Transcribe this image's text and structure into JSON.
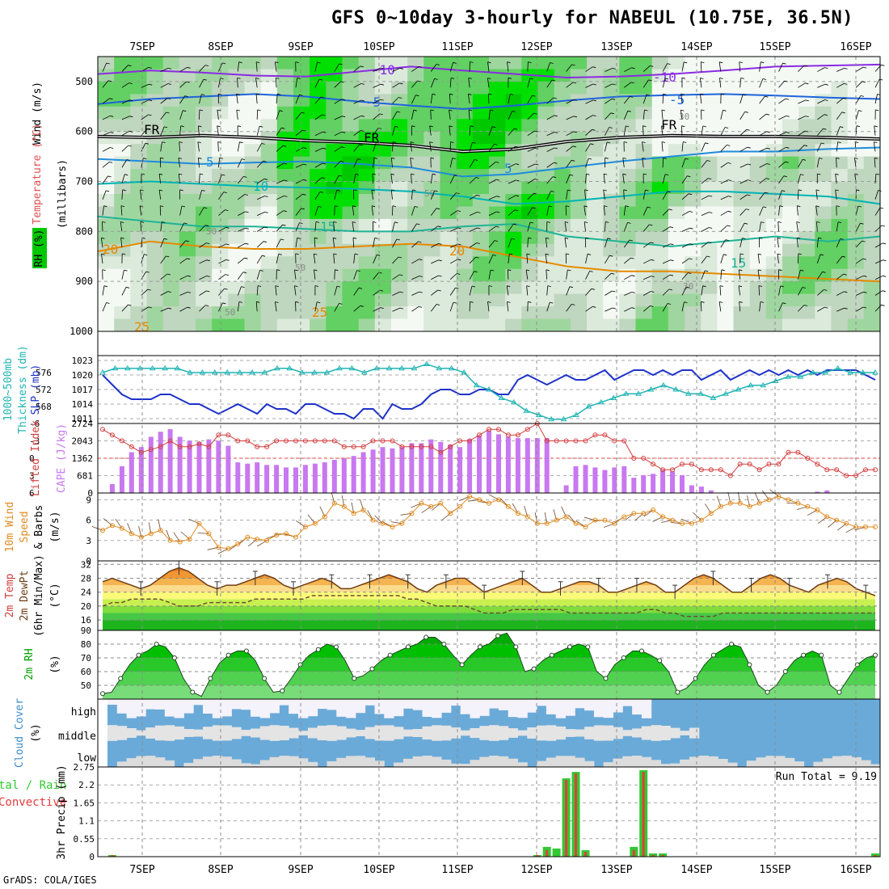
{
  "title": "GFS 0~10day 3-hourly for NABEUL (10.75E, 36.5N)",
  "credit": "GrADS: COLA/IGES",
  "date_labels": [
    "7SEP",
    "8SEP",
    "9SEP",
    "10SEP",
    "11SEP",
    "12SEP",
    "13SEP",
    "14SEP",
    "15SEP",
    "16SEP"
  ],
  "colors": {
    "rh_green": "#00d400",
    "temp_purple": "#8a2be2",
    "temp_blue": "#1e64dc",
    "temp_teal": "#00b4b4",
    "temp_orange": "#e68a00",
    "slp_blue": "#1e32c8",
    "thickness_cyan": "#20b4b4",
    "cape_purple": "#c878f0",
    "li_red": "#d23c3c",
    "wind_orange": "#e08a1e",
    "precip_green": "#32c832",
    "precip_red": "#e63c3c",
    "cloud_blue": "#6aaad8"
  },
  "chart_data": [
    {
      "type": "heatmap",
      "panel": "upper_air",
      "ylabel": "(millibars)",
      "side_labels": {
        "rh": "RH (%)",
        "temperature": "Temperature (°C)",
        "wind": "Wind (m/s)"
      },
      "yticks": [
        500,
        600,
        700,
        800,
        900,
        1000
      ],
      "ylim": [
        1000,
        450
      ],
      "contour_labels": [
        "-10",
        "-10",
        "-5",
        "-5",
        "FR",
        "FR",
        "FR",
        "5",
        "5",
        "10",
        "15",
        "15",
        "20",
        "20",
        "25",
        "25",
        "50",
        "50",
        "50",
        "50",
        "30",
        "30"
      ],
      "temp_contours": [
        {
          "label": "-10",
          "color": "#8a2be2",
          "p": [
            485,
            478,
            482,
            488,
            490,
            480,
            470,
            478,
            485,
            492,
            490,
            485,
            478,
            470,
            468,
            466
          ]
        },
        {
          "label": "-5",
          "color": "#1e64dc",
          "p": [
            545,
            535,
            530,
            525,
            530,
            540,
            548,
            555,
            548,
            538,
            530,
            527,
            525,
            528,
            532,
            535
          ]
        },
        {
          "label": "FR",
          "color": "#000000",
          "p": [
            610,
            612,
            608,
            612,
            618,
            622,
            628,
            640,
            635,
            620,
            612,
            608,
            610,
            610,
            612,
            615
          ]
        },
        {
          "label": "5",
          "color": "#1e8cdc",
          "p": [
            655,
            660,
            665,
            662,
            660,
            665,
            672,
            690,
            685,
            672,
            660,
            650,
            640,
            640,
            635,
            632
          ]
        },
        {
          "label": "10",
          "color": "#00b4b4",
          "p": [
            705,
            700,
            705,
            710,
            712,
            715,
            720,
            730,
            745,
            740,
            730,
            720,
            720,
            725,
            730,
            745
          ]
        },
        {
          "label": "15",
          "color": "#1eb496",
          "p": [
            770,
            780,
            790,
            790,
            795,
            800,
            800,
            790,
            785,
            810,
            820,
            830,
            820,
            810,
            820,
            810
          ]
        },
        {
          "label": "20",
          "color": "#e68a00",
          "p": [
            840,
            820,
            830,
            835,
            835,
            830,
            825,
            830,
            850,
            870,
            880,
            880,
            885,
            890,
            895,
            900
          ]
        }
      ]
    },
    {
      "type": "line",
      "panel": "thickness_slp",
      "labels": {
        "thickness": "1000~500mb Thickness (dm)",
        "slp": "SLP (mb)"
      },
      "left_ticks": [
        568,
        572,
        576
      ],
      "right_ticks": [
        1011,
        1014,
        1017,
        1020,
        1023
      ],
      "series": [
        {
          "name": "SLP (mb)",
          "color": "#1e32c8",
          "values": [
            1020,
            1018,
            1016,
            1015,
            1015,
            1015,
            1016,
            1016,
            1015,
            1014,
            1014,
            1013,
            1012,
            1013,
            1014,
            1013,
            1012,
            1014,
            1013,
            1013,
            1012,
            1014,
            1014,
            1013,
            1012,
            1012,
            1011,
            1013,
            1013,
            1011,
            1014,
            1013,
            1013,
            1014,
            1016,
            1017,
            1017,
            1016,
            1016,
            1017,
            1017,
            1016,
            1016,
            1019,
            1020,
            1019,
            1018,
            1019,
            1020,
            1019,
            1019,
            1020,
            1021,
            1019,
            1020,
            1021,
            1021,
            1020,
            1021,
            1020,
            1021,
            1021,
            1019,
            1020,
            1021,
            1019,
            1020,
            1021,
            1020,
            1021,
            1020,
            1021,
            1020,
            1021,
            1020,
            1021,
            1021,
            1021,
            1021,
            1020,
            1019
          ]
        },
        {
          "name": "Thickness (dm)",
          "color": "#20b4b4",
          "values": [
            576,
            577,
            577,
            577,
            577,
            577,
            577,
            576,
            576,
            576,
            576,
            576,
            576,
            576,
            577,
            577,
            576,
            576,
            576,
            577,
            577,
            576,
            577,
            577,
            577,
            577,
            578,
            577,
            577,
            576,
            573,
            572,
            570,
            569,
            567,
            566,
            565,
            565,
            566,
            568,
            569,
            570,
            571,
            571,
            572,
            573,
            572,
            571,
            571,
            570,
            571,
            572,
            573,
            573,
            574,
            575,
            575,
            576,
            576,
            577,
            576,
            576,
            576
          ]
        }
      ]
    },
    {
      "type": "bar",
      "panel": "cape_li",
      "labels": {
        "li": "Lifted Index",
        "cape": "CAPE (J/kg)"
      },
      "left_ticks": [
        -6,
        -3,
        0,
        3,
        6
      ],
      "right_ticks": [
        0,
        681,
        1362,
        2043,
        2724
      ],
      "series": [
        {
          "name": "CAPE (J/kg)",
          "color": "#c878f0",
          "values": [
            0,
            350,
            1050,
            1600,
            1800,
            2200,
            2400,
            2500,
            2200,
            2050,
            2000,
            2100,
            2050,
            1850,
            1200,
            1150,
            1200,
            1100,
            1100,
            1000,
            1000,
            1100,
            1150,
            1200,
            1300,
            1350,
            1450,
            1600,
            1700,
            1800,
            1750,
            1800,
            1950,
            1950,
            2100,
            2000,
            1900,
            1800,
            2100,
            2250,
            2450,
            2300,
            2200,
            2150,
            2150,
            2150,
            2150,
            0,
            300,
            1050,
            1100,
            1000,
            900,
            1000,
            1050,
            600,
            700,
            750,
            900,
            850,
            700,
            300,
            250,
            100,
            0,
            0,
            0,
            0,
            0,
            0,
            0,
            0,
            0,
            0,
            50,
            100,
            0,
            0,
            0,
            0,
            0
          ]
        },
        {
          "name": "Lifted Index",
          "color": "#d23c3c",
          "values": [
            -5,
            -4,
            -3,
            -2,
            -1,
            -1.5,
            -2,
            -3,
            -2,
            -2,
            -2.5,
            -2,
            -4,
            -4,
            -3,
            -3,
            -2,
            -2,
            -3,
            -3,
            -3,
            -3,
            -3,
            -3,
            -3,
            -2,
            -2,
            -2,
            -3,
            -3,
            -3,
            -2,
            -2,
            -2,
            -2,
            -1,
            -2,
            -3,
            -3,
            -4,
            -5,
            -5,
            -4,
            -4,
            -5,
            -6,
            -3,
            -3,
            -3,
            -3,
            -3,
            -4,
            -4,
            -3,
            -3,
            0,
            0,
            1,
            2,
            2,
            1,
            1,
            2,
            2,
            2,
            3,
            1,
            1,
            2,
            1,
            1,
            -1,
            -1,
            0,
            1,
            2,
            2,
            3,
            3,
            2,
            2
          ]
        }
      ]
    },
    {
      "type": "line",
      "panel": "wind10m",
      "labels": {
        "wind": "10m Wind Speed & Barbs (m/s)"
      },
      "left_ticks": [
        0,
        3,
        6,
        9
      ],
      "series": [
        {
          "name": "10m Wind Speed",
          "color": "#e08a1e",
          "values": [
            4.5,
            5.2,
            4.8,
            4.0,
            3.5,
            4.0,
            4.5,
            3.0,
            2.8,
            3.2,
            5.5,
            4.0,
            2.0,
            1.8,
            2.5,
            3.5,
            3.2,
            3.0,
            3.8,
            4.0,
            3.5,
            5.0,
            5.5,
            6.5,
            8.5,
            8.0,
            7.0,
            7.5,
            6.0,
            5.5,
            5.0,
            5.5,
            7.0,
            8.5,
            8.0,
            8.5,
            7.0,
            8.0,
            9.5,
            9.0,
            8.5,
            9.0,
            8.0,
            7.0,
            6.5,
            5.5,
            5.5,
            6.0,
            6.5,
            5.5,
            5.0,
            6.0,
            6.0,
            5.5,
            6.5,
            7.0,
            7.0,
            7.5,
            6.5,
            6.0,
            5.5,
            5.5,
            6.0,
            7.0,
            8.0,
            8.5,
            8.5,
            8.0,
            8.5,
            9.0,
            9.5,
            9.0,
            8.5,
            8.0,
            7.5,
            6.5,
            6.0,
            5.5,
            5.0,
            5.0,
            5.0
          ]
        }
      ]
    },
    {
      "type": "area",
      "panel": "temp2m",
      "labels": {
        "temp": "2m Temp",
        "dewpt": "2m DewPt",
        "minmax": "(6hr Min/Max)",
        "unit": "(°C)"
      },
      "left_ticks": [
        16,
        20,
        24,
        28,
        32
      ],
      "series": [
        {
          "name": "2m Temp",
          "color": "#e8781e",
          "values": [
            27,
            28,
            27,
            26,
            25,
            26,
            28,
            30,
            31,
            30,
            28,
            26,
            25,
            26,
            26,
            27,
            28,
            29,
            28,
            26,
            25,
            26,
            27,
            28,
            27,
            25,
            25,
            26,
            27,
            28,
            29,
            28,
            27,
            25,
            24,
            26,
            27,
            28,
            28,
            26,
            24,
            25,
            26,
            27,
            28,
            26,
            24,
            24,
            25,
            26,
            27,
            27,
            26,
            24,
            24,
            25,
            26,
            27,
            26,
            24,
            24,
            26,
            28,
            29,
            28,
            26,
            24,
            24,
            26,
            28,
            29,
            28,
            26,
            25,
            24,
            26,
            27,
            28,
            27,
            25,
            24,
            23
          ]
        },
        {
          "name": "2m DewPt",
          "color": "#6e5032",
          "values": [
            20,
            21,
            21,
            22,
            22,
            22,
            22,
            21,
            20,
            20,
            20,
            21,
            21,
            21,
            21,
            21,
            22,
            22,
            22,
            22,
            22,
            22,
            23,
            23,
            23,
            23,
            23,
            23,
            23,
            23,
            23,
            23,
            22,
            22,
            21,
            20,
            20,
            20,
            20,
            19,
            18,
            18,
            18,
            19,
            19,
            19,
            19,
            19,
            19,
            18,
            18,
            18,
            18,
            18,
            18,
            18,
            18,
            19,
            19,
            18,
            18,
            17,
            17,
            17,
            17,
            18,
            18,
            18,
            18,
            18,
            18,
            18,
            18,
            18,
            18,
            18,
            18,
            18,
            18,
            18,
            18,
            18
          ]
        }
      ]
    },
    {
      "type": "area",
      "panel": "rh2m",
      "labels": {
        "rh": "2m RH",
        "unit": "(%)"
      },
      "left_ticks": [
        50,
        60,
        70,
        80,
        90
      ],
      "series": [
        {
          "name": "2m RH",
          "color": "#00c800",
          "values": [
            44,
            45,
            55,
            65,
            72,
            75,
            80,
            78,
            70,
            55,
            45,
            42,
            55,
            66,
            72,
            75,
            75,
            68,
            55,
            45,
            46,
            55,
            65,
            72,
            76,
            80,
            78,
            68,
            55,
            57,
            62,
            68,
            72,
            75,
            78,
            80,
            85,
            85,
            80,
            72,
            65,
            72,
            78,
            80,
            86,
            88,
            78,
            60,
            62,
            68,
            72,
            75,
            78,
            80,
            78,
            60,
            55,
            65,
            70,
            75,
            75,
            72,
            68,
            60,
            45,
            48,
            55,
            65,
            72,
            76,
            80,
            78,
            65,
            50,
            45,
            50,
            60,
            68,
            72,
            75,
            72,
            50,
            45,
            55,
            65,
            70,
            72
          ]
        }
      ]
    },
    {
      "type": "heatmap",
      "panel": "cloud_cover",
      "labels": {
        "title": "Cloud Cover",
        "unit": "(%)",
        "rows": [
          "high",
          "middle",
          "low"
        ]
      }
    },
    {
      "type": "bar",
      "panel": "precip",
      "labels": {
        "title": "Total / Rain Convective",
        "unit": "3hr Precip (mm)",
        "run_total": "Run Total = 9.19"
      },
      "left_ticks": [
        "0",
        "0.55",
        "1.1",
        "1.65",
        "2.2",
        "2.75"
      ],
      "series": [
        {
          "name": "Total",
          "color": "#32c832",
          "values": {
            "1": 0.05,
            "45": 0.05,
            "46": 0.3,
            "47": 0.25,
            "48": 2.4,
            "49": 2.6,
            "50": 0.2,
            "55": 0.3,
            "56": 2.65,
            "57": 0.1,
            "58": 0.1,
            "80": 0.1
          }
        },
        {
          "name": "Convective",
          "color": "#e63c3c",
          "values": {
            "1": 0.05,
            "45": 0.05,
            "46": 0.2,
            "48": 2.35,
            "49": 2.55,
            "50": 0.15,
            "55": 0.2,
            "56": 2.6,
            "57": 0.05,
            "58": 0.05,
            "80": 0.05
          }
        }
      ]
    }
  ]
}
